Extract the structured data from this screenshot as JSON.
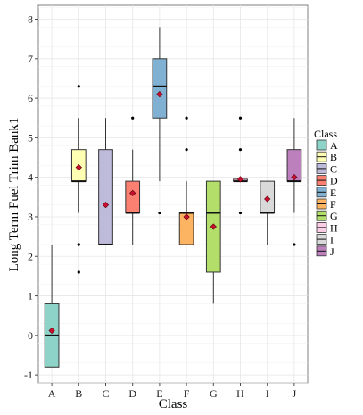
{
  "chart_data": {
    "type": "box",
    "xlabel": "Class",
    "ylabel": "Long Term Fuel Trim Bank1",
    "ylim": [
      -1.2,
      8.35
    ],
    "yticks": [
      -1,
      0,
      1,
      2,
      3,
      4,
      5,
      6,
      7,
      8
    ],
    "grid": true,
    "legend_title": "Class",
    "legend_position": "right",
    "categories": [
      "A",
      "B",
      "C",
      "D",
      "E",
      "F",
      "G",
      "H",
      "I",
      "J"
    ],
    "colors": [
      "#8DD3C7",
      "#FFFFB3",
      "#BEBADA",
      "#FB8072",
      "#80B1D3",
      "#FDB462",
      "#B3DE69",
      "#FCCDE5",
      "#D9D9D9",
      "#BC80BD"
    ],
    "boxes": [
      {
        "category": "A",
        "whisker_low": -0.8,
        "q1": -0.8,
        "median": 0.0,
        "q3": 0.8,
        "whisker_high": 2.3,
        "mean": 0.12,
        "outliers": []
      },
      {
        "category": "B",
        "whisker_low": 3.1,
        "q1": 3.9,
        "median": 3.9,
        "q3": 4.7,
        "whisker_high": 5.5,
        "mean": 4.25,
        "outliers": [
          6.3,
          2.3,
          1.6
        ]
      },
      {
        "category": "C",
        "whisker_low": 2.3,
        "q1": 2.3,
        "median": 2.3,
        "q3": 4.7,
        "whisker_high": 5.5,
        "mean": 3.3,
        "outliers": []
      },
      {
        "category": "D",
        "whisker_low": 2.3,
        "q1": 3.1,
        "median": 3.1,
        "q3": 3.9,
        "whisker_high": 4.7,
        "mean": 3.6,
        "outliers": [
          5.5
        ]
      },
      {
        "category": "E",
        "whisker_low": 3.9,
        "q1": 5.5,
        "median": 6.3,
        "q3": 7.0,
        "whisker_high": 7.8,
        "mean": 6.1,
        "outliers": [
          3.1
        ]
      },
      {
        "category": "F",
        "whisker_low": 2.3,
        "q1": 2.3,
        "median": 3.1,
        "q3": 3.1,
        "whisker_high": 3.9,
        "mean": 3.0,
        "outliers": [
          5.5,
          4.7
        ]
      },
      {
        "category": "G",
        "whisker_low": 0.8,
        "q1": 1.6,
        "median": 3.1,
        "q3": 3.9,
        "whisker_high": 3.9,
        "mean": 2.75,
        "outliers": []
      },
      {
        "category": "H",
        "whisker_low": 3.9,
        "q1": 3.9,
        "median": 3.9,
        "q3": 3.95,
        "whisker_high": 3.95,
        "mean": 3.95,
        "outliers": [
          5.5,
          4.7,
          3.1
        ]
      },
      {
        "category": "I",
        "whisker_low": 2.3,
        "q1": 3.1,
        "median": 3.1,
        "q3": 3.9,
        "whisker_high": 3.9,
        "mean": 3.45,
        "outliers": []
      },
      {
        "category": "J",
        "whisker_low": 3.1,
        "q1": 3.9,
        "median": 3.9,
        "q3": 4.7,
        "whisker_high": 5.5,
        "mean": 4.0,
        "outliers": [
          2.3
        ]
      }
    ]
  }
}
